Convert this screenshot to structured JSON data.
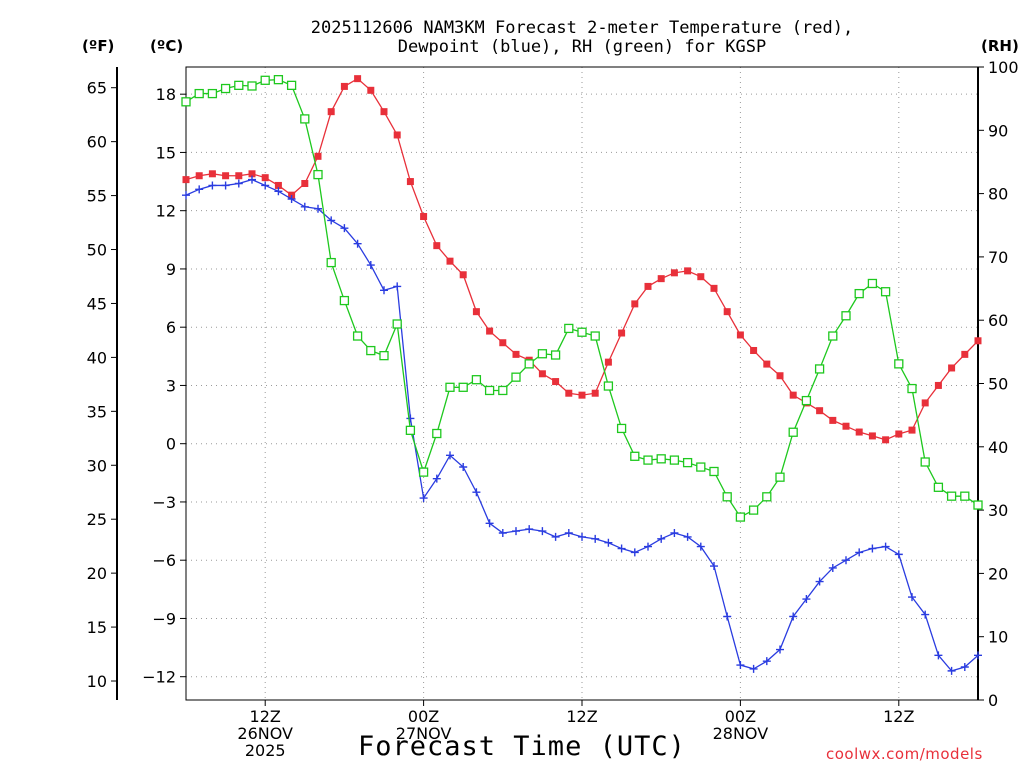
{
  "chart_data": {
    "type": "line",
    "title_line1": "2025112606 NAM3KM Forecast 2-meter Temperature (red),",
    "title_line2": "Dewpoint (blue), RH (green) for KGSP",
    "unit_f": "(ºF)",
    "unit_c": "(ºC)",
    "unit_rh": "(RH)",
    "xlabel": "Forecast Time (UTC)",
    "credit": "coolwx.com/models",
    "x_range_hours": [
      6,
      66
    ],
    "x_ticks": [
      {
        "hour": 12,
        "lines": [
          "12Z",
          "26NOV",
          "2025"
        ]
      },
      {
        "hour": 24,
        "lines": [
          "00Z",
          "27NOV"
        ]
      },
      {
        "hour": 36,
        "lines": [
          "12Z"
        ]
      },
      {
        "hour": 48,
        "lines": [
          "00Z",
          "28NOV"
        ]
      },
      {
        "hour": 60,
        "lines": [
          "12Z"
        ]
      }
    ],
    "y_left_c": {
      "range": [
        -13.2,
        19.4
      ],
      "ticks": [
        -12,
        -9,
        -6,
        -3,
        0,
        3,
        6,
        9,
        12,
        15,
        18
      ]
    },
    "y_left_f": {
      "ticks": [
        10,
        15,
        20,
        25,
        30,
        35,
        40,
        45,
        50,
        55,
        60,
        65
      ]
    },
    "y_right_rh": {
      "range": [
        0,
        100
      ],
      "ticks": [
        0,
        10,
        20,
        30,
        40,
        50,
        60,
        70,
        80,
        90,
        100
      ]
    },
    "colors": {
      "temperature": "#e8303a",
      "dewpoint": "#2a3ce0",
      "rh": "#1ec81e",
      "grid": "#9a9a9a"
    },
    "series": [
      {
        "name": "Temperature",
        "unit": "C",
        "color": "#e8303a",
        "marker": "filled-square",
        "values": [
          [
            6,
            13.6
          ],
          [
            7,
            13.8
          ],
          [
            8,
            13.9
          ],
          [
            9,
            13.8
          ],
          [
            10,
            13.8
          ],
          [
            11,
            13.9
          ],
          [
            12,
            13.7
          ],
          [
            13,
            13.3
          ],
          [
            14,
            12.8
          ],
          [
            15,
            13.4
          ],
          [
            16,
            14.8
          ],
          [
            17,
            17.1
          ],
          [
            18,
            18.4
          ],
          [
            19,
            18.8
          ],
          [
            20,
            18.2
          ],
          [
            21,
            17.1
          ],
          [
            22,
            15.9
          ],
          [
            23,
            13.5
          ],
          [
            24,
            11.7
          ],
          [
            25,
            10.2
          ],
          [
            26,
            9.4
          ],
          [
            27,
            8.7
          ],
          [
            28,
            6.8
          ],
          [
            29,
            5.8
          ],
          [
            30,
            5.2
          ],
          [
            31,
            4.6
          ],
          [
            32,
            4.3
          ],
          [
            33,
            3.6
          ],
          [
            34,
            3.2
          ],
          [
            35,
            2.6
          ],
          [
            36,
            2.5
          ],
          [
            37,
            2.6
          ],
          [
            38,
            4.2
          ],
          [
            39,
            5.7
          ],
          [
            40,
            7.2
          ],
          [
            41,
            8.1
          ],
          [
            42,
            8.5
          ],
          [
            43,
            8.8
          ],
          [
            44,
            8.9
          ],
          [
            45,
            8.6
          ],
          [
            46,
            8.0
          ],
          [
            47,
            6.8
          ],
          [
            48,
            5.6
          ],
          [
            49,
            4.8
          ],
          [
            50,
            4.1
          ],
          [
            51,
            3.5
          ],
          [
            52,
            2.5
          ],
          [
            53,
            2.1
          ],
          [
            54,
            1.7
          ],
          [
            55,
            1.2
          ],
          [
            56,
            0.9
          ],
          [
            57,
            0.6
          ],
          [
            58,
            0.4
          ],
          [
            59,
            0.2
          ],
          [
            60,
            0.5
          ],
          [
            61,
            0.7
          ],
          [
            62,
            2.1
          ],
          [
            63,
            3.0
          ],
          [
            64,
            3.9
          ],
          [
            65,
            4.6
          ],
          [
            66,
            5.3
          ]
        ]
      },
      {
        "name": "Dewpoint",
        "unit": "C",
        "color": "#2a3ce0",
        "marker": "plus",
        "values": [
          [
            6,
            12.8
          ],
          [
            7,
            13.1
          ],
          [
            8,
            13.3
          ],
          [
            9,
            13.3
          ],
          [
            10,
            13.4
          ],
          [
            11,
            13.6
          ],
          [
            12,
            13.3
          ],
          [
            13,
            13.0
          ],
          [
            14,
            12.6
          ],
          [
            15,
            12.2
          ],
          [
            16,
            12.1
          ],
          [
            17,
            11.5
          ],
          [
            18,
            11.1
          ],
          [
            19,
            10.3
          ],
          [
            20,
            9.2
          ],
          [
            21,
            7.9
          ],
          [
            22,
            8.1
          ],
          [
            23,
            1.3
          ],
          [
            24,
            -2.8
          ],
          [
            25,
            -1.8
          ],
          [
            26,
            -0.6
          ],
          [
            27,
            -1.2
          ],
          [
            28,
            -2.5
          ],
          [
            29,
            -4.1
          ],
          [
            30,
            -4.6
          ],
          [
            31,
            -4.5
          ],
          [
            32,
            -4.4
          ],
          [
            33,
            -4.5
          ],
          [
            34,
            -4.8
          ],
          [
            35,
            -4.6
          ],
          [
            36,
            -4.8
          ],
          [
            37,
            -4.9
          ],
          [
            38,
            -5.1
          ],
          [
            39,
            -5.4
          ],
          [
            40,
            -5.6
          ],
          [
            41,
            -5.3
          ],
          [
            42,
            -4.9
          ],
          [
            43,
            -4.6
          ],
          [
            44,
            -4.8
          ],
          [
            45,
            -5.3
          ],
          [
            46,
            -6.3
          ],
          [
            47,
            -8.9
          ],
          [
            48,
            -11.4
          ],
          [
            49,
            -11.6
          ],
          [
            50,
            -11.2
          ],
          [
            51,
            -10.6
          ],
          [
            52,
            -8.9
          ],
          [
            53,
            -8.0
          ],
          [
            54,
            -7.1
          ],
          [
            55,
            -6.4
          ],
          [
            56,
            -6.0
          ],
          [
            57,
            -5.6
          ],
          [
            58,
            -5.4
          ],
          [
            59,
            -5.3
          ],
          [
            60,
            -5.7
          ],
          [
            61,
            -7.9
          ],
          [
            62,
            -8.8
          ],
          [
            63,
            -10.9
          ],
          [
            64,
            -11.7
          ],
          [
            65,
            -11.5
          ],
          [
            66,
            -10.9
          ]
        ]
      },
      {
        "name": "RH",
        "unit": "%",
        "color": "#1ec81e",
        "marker": "open-square",
        "values": [
          [
            6,
            94.5
          ],
          [
            7,
            95.8
          ],
          [
            8,
            95.8
          ],
          [
            9,
            96.6
          ],
          [
            10,
            97.1
          ],
          [
            11,
            97.0
          ],
          [
            12,
            97.9
          ],
          [
            13,
            98.0
          ],
          [
            14,
            97.1
          ],
          [
            15,
            91.8
          ],
          [
            16,
            83.0
          ],
          [
            17,
            69.1
          ],
          [
            18,
            63.1
          ],
          [
            19,
            57.5
          ],
          [
            20,
            55.2
          ],
          [
            21,
            54.4
          ],
          [
            22,
            59.4
          ],
          [
            23,
            42.6
          ],
          [
            24,
            36.0
          ],
          [
            25,
            42.1
          ],
          [
            26,
            49.4
          ],
          [
            27,
            49.4
          ],
          [
            28,
            50.6
          ],
          [
            29,
            48.9
          ],
          [
            30,
            48.9
          ],
          [
            31,
            51.0
          ],
          [
            32,
            53.1
          ],
          [
            33,
            54.7
          ],
          [
            34,
            54.5
          ],
          [
            35,
            58.7
          ],
          [
            36,
            58.1
          ],
          [
            37,
            57.5
          ],
          [
            38,
            49.6
          ],
          [
            39,
            42.9
          ],
          [
            40,
            38.5
          ],
          [
            41,
            37.9
          ],
          [
            42,
            38.1
          ],
          [
            43,
            37.9
          ],
          [
            44,
            37.5
          ],
          [
            45,
            36.8
          ],
          [
            46,
            36.1
          ],
          [
            47,
            32.1
          ],
          [
            48,
            28.9
          ],
          [
            49,
            30.0
          ],
          [
            50,
            32.1
          ],
          [
            51,
            35.2
          ],
          [
            52,
            42.3
          ],
          [
            53,
            47.3
          ],
          [
            54,
            52.3
          ],
          [
            55,
            57.5
          ],
          [
            56,
            60.7
          ],
          [
            57,
            64.2
          ],
          [
            58,
            65.8
          ],
          [
            59,
            64.5
          ],
          [
            60,
            53.1
          ],
          [
            61,
            49.2
          ],
          [
            62,
            37.6
          ],
          [
            63,
            33.6
          ],
          [
            64,
            32.2
          ],
          [
            65,
            32.2
          ],
          [
            66,
            30.8
          ]
        ]
      }
    ]
  }
}
